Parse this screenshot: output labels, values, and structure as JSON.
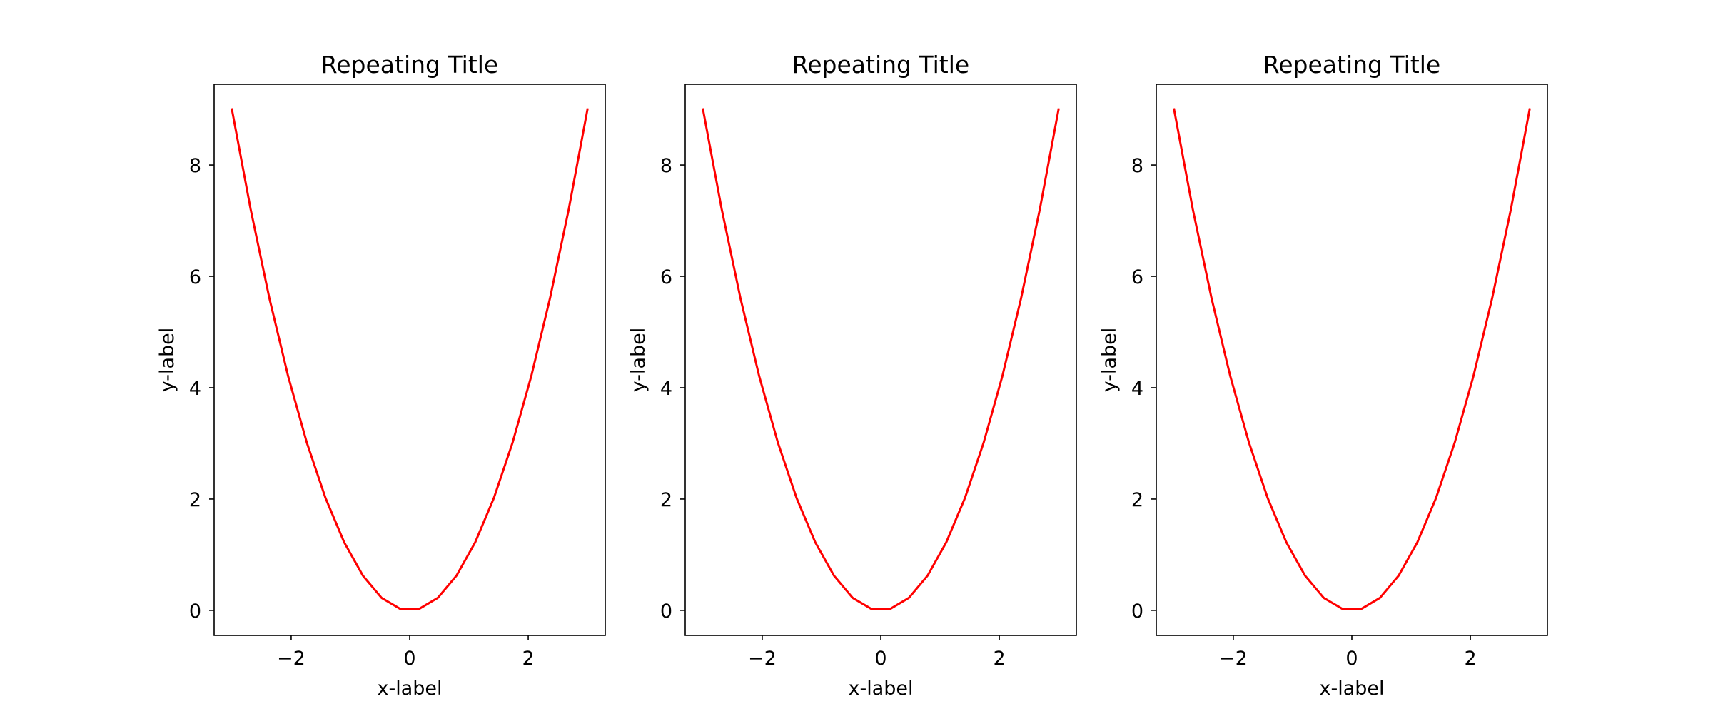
{
  "chart_data": [
    {
      "type": "line",
      "title": "Repeating Title",
      "xlabel": "x-label",
      "ylabel": "y-label",
      "xlim": [
        -3.3,
        3.3
      ],
      "ylim": [
        -0.45,
        9.45
      ],
      "xticks": [
        {
          "value": -2,
          "label": "−2"
        },
        {
          "value": 0,
          "label": "0"
        },
        {
          "value": 2,
          "label": "2"
        }
      ],
      "yticks": [
        {
          "value": 0,
          "label": "0"
        },
        {
          "value": 2,
          "label": "2"
        },
        {
          "value": 4,
          "label": "4"
        },
        {
          "value": 6,
          "label": "6"
        },
        {
          "value": 8,
          "label": "8"
        }
      ],
      "grid": false,
      "series": [
        {
          "color": "#ff0000",
          "x": [
            -3.0,
            -2.684,
            -2.368,
            -2.053,
            -1.737,
            -1.421,
            -1.105,
            -0.789,
            -0.474,
            -0.158,
            0.158,
            0.474,
            0.789,
            1.105,
            1.421,
            1.737,
            2.053,
            2.368,
            2.684,
            3.0
          ],
          "y": [
            9.0,
            7.205,
            5.609,
            4.214,
            3.017,
            2.02,
            1.222,
            0.623,
            0.224,
            0.025,
            0.025,
            0.224,
            0.623,
            1.222,
            2.02,
            3.017,
            4.214,
            5.609,
            7.205,
            9.0
          ]
        }
      ]
    },
    {
      "type": "line",
      "title": "Repeating Title",
      "xlabel": "x-label",
      "ylabel": "y-label",
      "xlim": [
        -3.3,
        3.3
      ],
      "ylim": [
        -0.45,
        9.45
      ],
      "xticks": [
        {
          "value": -2,
          "label": "−2"
        },
        {
          "value": 0,
          "label": "0"
        },
        {
          "value": 2,
          "label": "2"
        }
      ],
      "yticks": [
        {
          "value": 0,
          "label": "0"
        },
        {
          "value": 2,
          "label": "2"
        },
        {
          "value": 4,
          "label": "4"
        },
        {
          "value": 6,
          "label": "6"
        },
        {
          "value": 8,
          "label": "8"
        }
      ],
      "grid": false,
      "series": [
        {
          "color": "#ff0000",
          "x": [
            -3.0,
            -2.684,
            -2.368,
            -2.053,
            -1.737,
            -1.421,
            -1.105,
            -0.789,
            -0.474,
            -0.158,
            0.158,
            0.474,
            0.789,
            1.105,
            1.421,
            1.737,
            2.053,
            2.368,
            2.684,
            3.0
          ],
          "y": [
            9.0,
            7.205,
            5.609,
            4.214,
            3.017,
            2.02,
            1.222,
            0.623,
            0.224,
            0.025,
            0.025,
            0.224,
            0.623,
            1.222,
            2.02,
            3.017,
            4.214,
            5.609,
            7.205,
            9.0
          ]
        }
      ]
    },
    {
      "type": "line",
      "title": "Repeating Title",
      "xlabel": "x-label",
      "ylabel": "y-label",
      "xlim": [
        -3.3,
        3.3
      ],
      "ylim": [
        -0.45,
        9.45
      ],
      "xticks": [
        {
          "value": -2,
          "label": "−2"
        },
        {
          "value": 0,
          "label": "0"
        },
        {
          "value": 2,
          "label": "2"
        }
      ],
      "yticks": [
        {
          "value": 0,
          "label": "0"
        },
        {
          "value": 2,
          "label": "2"
        },
        {
          "value": 4,
          "label": "4"
        },
        {
          "value": 6,
          "label": "6"
        },
        {
          "value": 8,
          "label": "8"
        }
      ],
      "grid": false,
      "series": [
        {
          "color": "#ff0000",
          "x": [
            -3.0,
            -2.684,
            -2.368,
            -2.053,
            -1.737,
            -1.421,
            -1.105,
            -0.789,
            -0.474,
            -0.158,
            0.158,
            0.474,
            0.789,
            1.105,
            1.421,
            1.737,
            2.053,
            2.368,
            2.684,
            3.0
          ],
          "y": [
            9.0,
            7.205,
            5.609,
            4.214,
            3.017,
            2.02,
            1.222,
            0.623,
            0.224,
            0.025,
            0.025,
            0.224,
            0.623,
            1.222,
            2.02,
            3.017,
            4.214,
            5.609,
            7.205,
            9.0
          ]
        }
      ]
    }
  ]
}
